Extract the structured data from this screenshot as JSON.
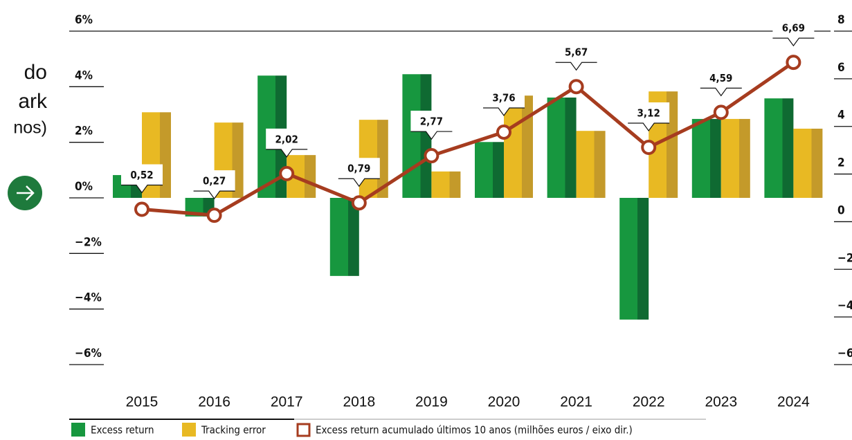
{
  "sidebar": {
    "lines": [
      "do",
      "ark",
      "nos)"
    ]
  },
  "chart_data": {
    "type": "bar",
    "categories": [
      "2015",
      "2016",
      "2017",
      "2018",
      "2019",
      "2020",
      "2021",
      "2022",
      "2023",
      "2024"
    ],
    "series": [
      {
        "name": "Excess return",
        "color": "#17973f",
        "values": [
          0.82,
          -0.67,
          4.4,
          -2.81,
          4.45,
          2.01,
          3.61,
          -4.38,
          2.84,
          3.58
        ]
      },
      {
        "name": "Tracking error",
        "color": "#e8b923",
        "values": [
          3.08,
          2.71,
          1.54,
          2.81,
          0.95,
          3.68,
          2.41,
          3.83,
          2.84,
          2.49
        ]
      },
      {
        "name": "Excess return acumulado últimos 10 anos (milhões euros / eixo dir.)",
        "type": "line",
        "axis": "y2",
        "color": "#a63c1f",
        "values": [
          0.52,
          0.27,
          2.02,
          0.79,
          2.77,
          3.76,
          5.67,
          3.12,
          4.59,
          6.69
        ],
        "value_labels": [
          "0,52",
          "0,27",
          "2,02",
          "0,79",
          "2,77",
          "3,76",
          "5,67",
          "3,12",
          "4,59",
          "6,69"
        ]
      }
    ],
    "ylim": [
      -6,
      6
    ],
    "yticks": [
      {
        "value": -6,
        "label": "−6%"
      },
      {
        "value": -4,
        "label": "−4%"
      },
      {
        "value": -2,
        "label": "−2%"
      },
      {
        "value": 0,
        "label": "0%"
      },
      {
        "value": 2,
        "label": "2%"
      },
      {
        "value": 4,
        "label": "4%"
      },
      {
        "value": 6,
        "label": "6%"
      }
    ],
    "y2lim": [
      -6,
      8
    ],
    "y2ticks": [
      {
        "value": -6,
        "label": "−6"
      },
      {
        "value": -4,
        "label": "−4"
      },
      {
        "value": -2,
        "label": "−2"
      },
      0,
      2,
      4,
      6,
      8
    ]
  }
}
